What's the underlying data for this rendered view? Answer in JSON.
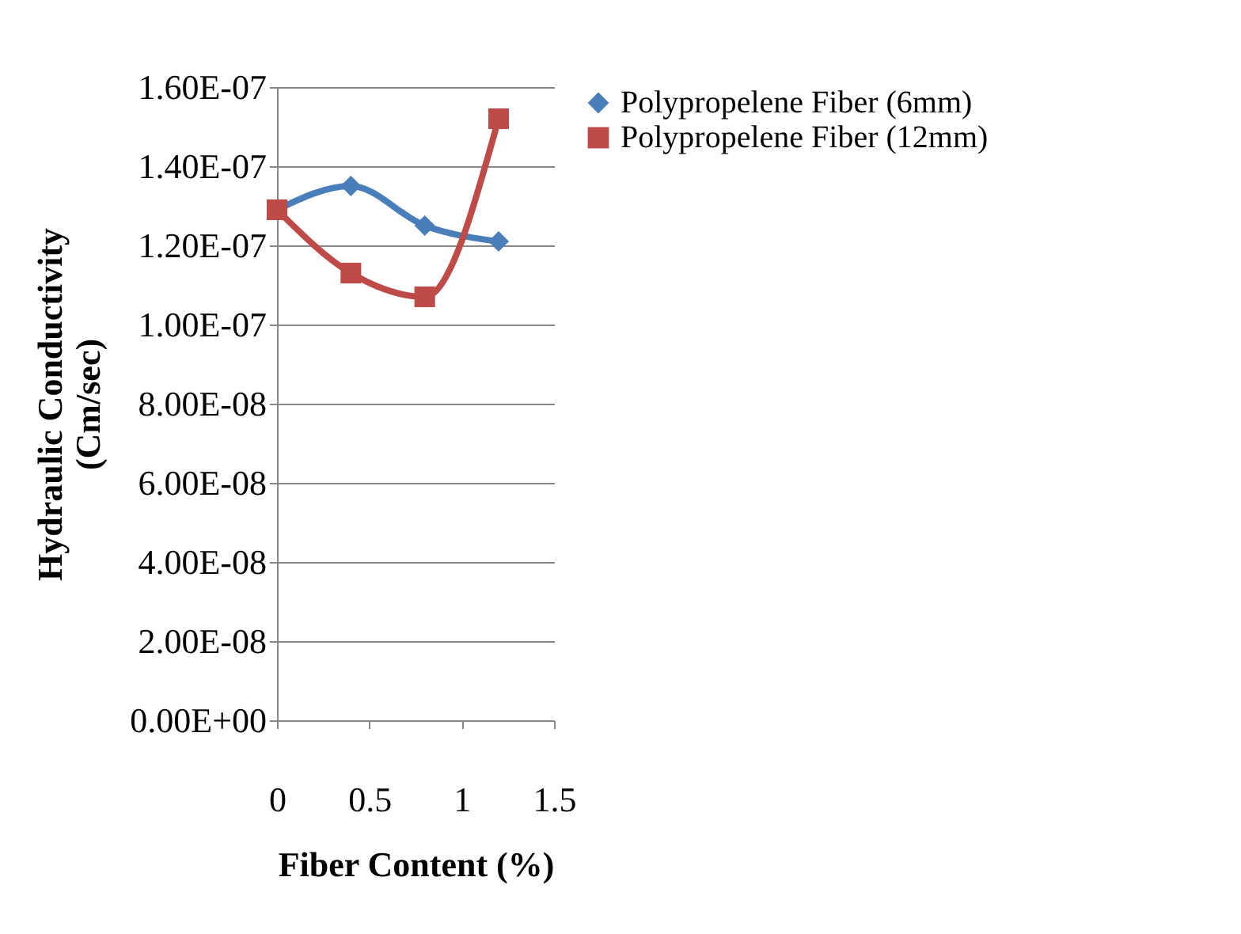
{
  "chart_data": {
    "type": "line",
    "xlabel": "Fiber Content (%)",
    "ylabel": "Hydraulic Conductivity\n(Cm/sec)",
    "xlim": [
      0,
      1.5
    ],
    "xticks": [
      0,
      0.5,
      1,
      1.5
    ],
    "ylim": [
      0,
      1.6e-07
    ],
    "yticks": [
      {
        "value": 0,
        "label": "0.00E+00"
      },
      {
        "value": 2e-08,
        "label": "2.00E-08"
      },
      {
        "value": 4e-08,
        "label": "4.00E-08"
      },
      {
        "value": 6e-08,
        "label": "6.00E-08"
      },
      {
        "value": 8e-08,
        "label": "8.00E-08"
      },
      {
        "value": 1e-07,
        "label": "1.00E-07"
      },
      {
        "value": 1.2e-07,
        "label": "1.20E-07"
      },
      {
        "value": 1.4e-07,
        "label": "1.40E-07"
      },
      {
        "value": 1.6e-07,
        "label": "1.60E-07"
      }
    ],
    "x": [
      0,
      0.4,
      0.8,
      1.2
    ],
    "series": [
      {
        "name": "Polypropelene Fiber (6mm)",
        "color": "#4a7ebb",
        "marker": "diamond",
        "line_style": "solid",
        "values": [
          1.29e-07,
          1.35e-07,
          1.25e-07,
          1.21e-07
        ]
      },
      {
        "name": "Polypropelene Fiber (12mm)",
        "color": "#be4b48",
        "marker": "square",
        "line_style": "solid",
        "values": [
          1.29e-07,
          1.13e-07,
          1.07e-07,
          1.52e-07
        ]
      }
    ],
    "grid": "y",
    "legend": "right"
  }
}
